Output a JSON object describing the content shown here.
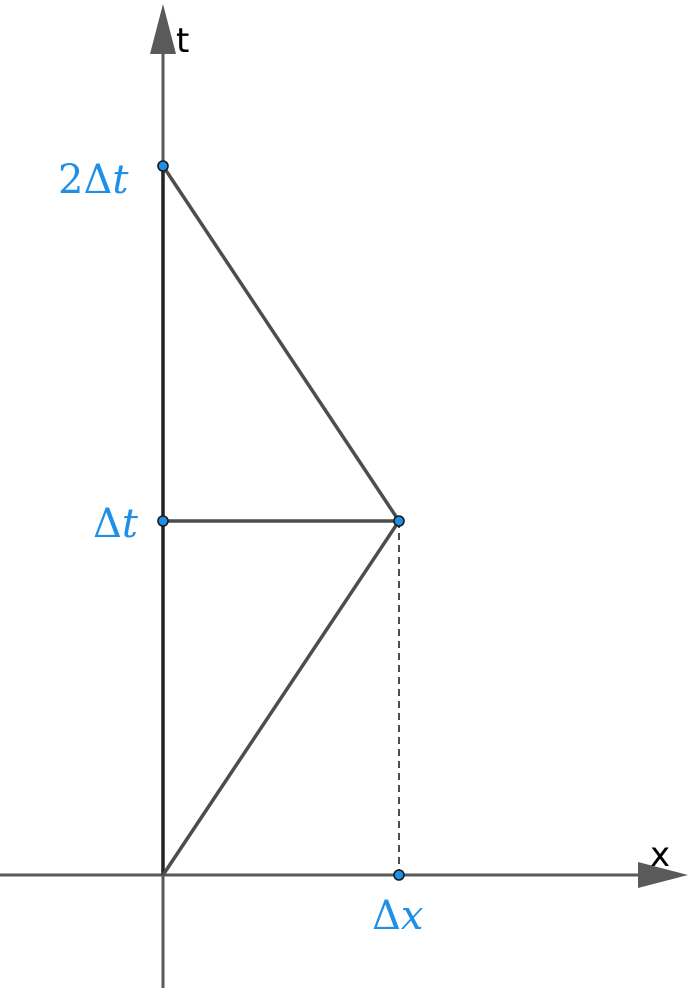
{
  "axes": {
    "x_label": "x",
    "y_label": "t"
  },
  "points": {
    "origin": {
      "x": 0,
      "t": 0
    },
    "mid_event": {
      "x": 1,
      "t": 1
    },
    "dt": {
      "x": 0,
      "t": 1,
      "label_sym": "Δ",
      "label_var": "t"
    },
    "two_dt": {
      "x": 0,
      "t": 2,
      "label_num": "2",
      "label_sym": "Δ",
      "label_var": "t"
    },
    "dx": {
      "x": 1,
      "t": 0,
      "label_sym": "Δ",
      "label_var": "x"
    }
  },
  "colors": {
    "point_fill": "#1e90e8",
    "label": "#1e90e8",
    "line": "#4d4d4d",
    "axis": "#5a5a5a"
  }
}
